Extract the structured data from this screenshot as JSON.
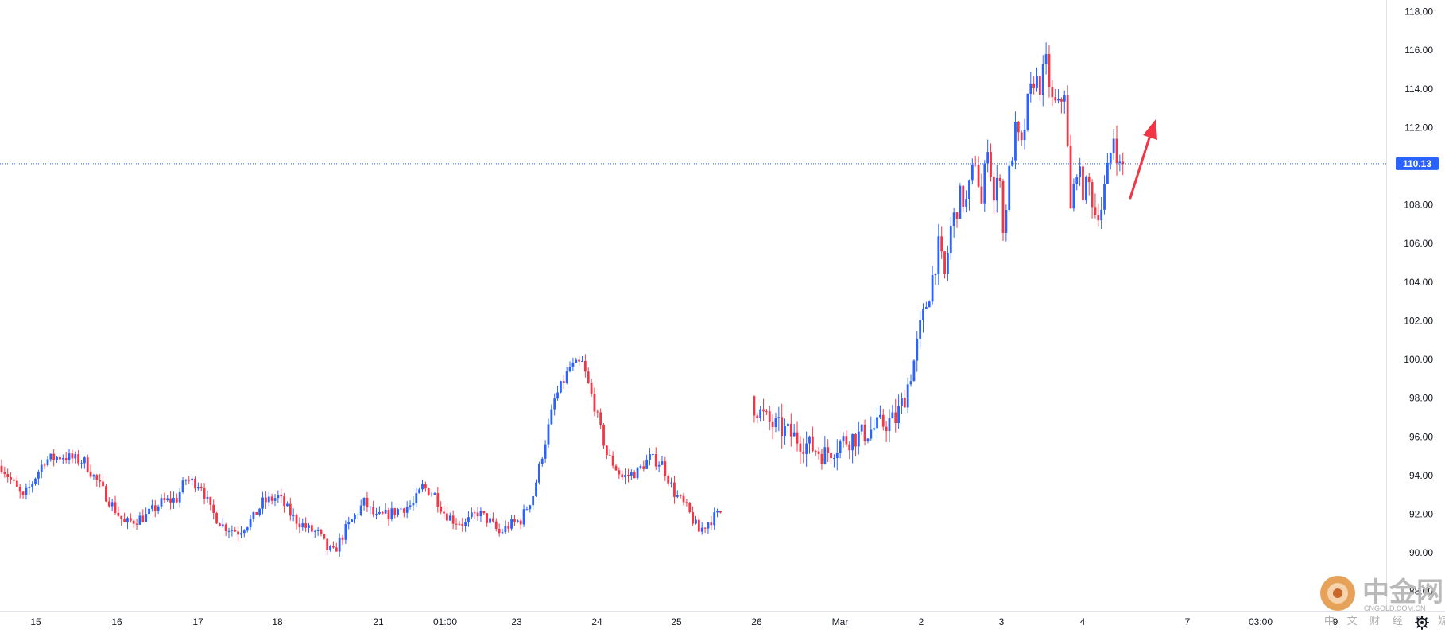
{
  "chart_data": {
    "type": "candlestick",
    "colors": {
      "up": "#2962ff",
      "down": "#f23645",
      "last_price_line": "#2962ff",
      "arrow": "#f23645",
      "axis_text": "#131722"
    },
    "ylim": [
      87,
      118.6
    ],
    "y_ticks": [
      "88.00",
      "90.00",
      "92.00",
      "94.00",
      "96.00",
      "98.00",
      "100.00",
      "102.00",
      "104.00",
      "106.00",
      "108.00",
      "110.00",
      "112.00",
      "114.00",
      "116.00",
      "118.00"
    ],
    "x_tick_labels": [
      "15",
      "16",
      "17",
      "18",
      "21",
      "01:00",
      "23",
      "24",
      "25",
      "26",
      "Mar",
      "2",
      "3",
      "4",
      "7",
      "03:00",
      "9"
    ],
    "last_price": 110.13,
    "last_price_label": "110.13",
    "annotation": "red arrow pointing up",
    "path": [
      [
        0,
        94.5
      ],
      [
        7,
        92.8
      ],
      [
        14,
        94.8
      ],
      [
        20,
        95.0
      ],
      [
        27,
        94.7
      ],
      [
        33,
        93.2
      ],
      [
        40,
        91.5
      ],
      [
        47,
        91.9
      ],
      [
        52,
        92.6
      ],
      [
        57,
        92.8
      ],
      [
        60,
        93.8
      ],
      [
        65,
        93.5
      ],
      [
        68,
        92.2
      ],
      [
        72,
        91.4
      ],
      [
        77,
        91.1
      ],
      [
        82,
        91.8
      ],
      [
        85,
        92.6
      ],
      [
        90,
        92.9
      ],
      [
        95,
        91.8
      ],
      [
        100,
        91.2
      ],
      [
        103,
        91.0
      ],
      [
        106,
        90.2
      ],
      [
        108,
        90.0
      ],
      [
        112,
        91.2
      ],
      [
        115,
        91.9
      ],
      [
        118,
        92.6
      ],
      [
        122,
        91.8
      ],
      [
        126,
        92.0
      ],
      [
        130,
        92.3
      ],
      [
        134,
        92.5
      ],
      [
        137,
        93.4
      ],
      [
        141,
        93.0
      ],
      [
        144,
        92.1
      ],
      [
        147,
        91.7
      ],
      [
        151,
        91.5
      ],
      [
        155,
        92.1
      ],
      [
        159,
        91.6
      ],
      [
        162,
        91.0
      ],
      [
        165,
        91.4
      ],
      [
        169,
        91.7
      ],
      [
        173,
        93.0
      ],
      [
        176,
        95.1
      ],
      [
        180,
        97.9
      ],
      [
        185,
        99.6
      ],
      [
        189,
        99.8
      ],
      [
        193,
        97.6
      ],
      [
        197,
        95.1
      ],
      [
        202,
        93.9
      ],
      [
        207,
        94.2
      ],
      [
        211,
        94.9
      ],
      [
        215,
        94.6
      ],
      [
        219,
        93.1
      ],
      [
        223,
        92.3
      ],
      [
        227,
        91.1
      ],
      [
        230,
        91.6
      ],
      [
        234,
        92.1
      ],
      [
        245,
        97.6
      ],
      [
        250,
        96.7
      ],
      [
        256,
        96.2
      ],
      [
        262,
        95.6
      ],
      [
        268,
        95.1
      ],
      [
        274,
        95.8
      ],
      [
        280,
        96.1
      ],
      [
        286,
        96.6
      ],
      [
        291,
        96.9
      ],
      [
        294,
        98.1
      ],
      [
        297,
        99.9
      ],
      [
        299,
        101.6
      ],
      [
        302,
        103.5
      ],
      [
        305,
        105.8
      ],
      [
        307,
        104.3
      ],
      [
        309,
        106.8
      ],
      [
        312,
        108.4
      ],
      [
        314,
        108.1
      ],
      [
        317,
        110.4
      ],
      [
        319,
        108.0
      ],
      [
        321,
        111.3
      ],
      [
        323,
        108.2
      ],
      [
        325,
        109.8
      ],
      [
        326,
        106.5
      ],
      [
        328,
        109.6
      ],
      [
        330,
        111.8
      ],
      [
        332,
        110.9
      ],
      [
        334,
        113.2
      ],
      [
        336,
        114.5
      ],
      [
        338,
        114.2
      ],
      [
        340,
        115.3
      ],
      [
        342,
        113.3
      ],
      [
        344,
        113.0
      ],
      [
        346,
        114.0
      ],
      [
        348,
        107.6
      ],
      [
        350,
        110.0
      ],
      [
        352,
        108.8
      ],
      [
        354,
        109.0
      ],
      [
        356,
        107.6
      ],
      [
        358,
        107.9
      ],
      [
        360,
        109.7
      ],
      [
        362,
        111.6
      ],
      [
        364,
        109.9
      ],
      [
        365,
        110.13
      ]
    ],
    "slots_total": 366,
    "gap_after_slot": 234,
    "gap_before_slot": 245
  },
  "icons": {
    "settings": "gear-icon",
    "watermark_logo": "cngold-logo-icon"
  },
  "watermark": {
    "brand": "中金网",
    "domain": "CNGOLD.COM.CN",
    "tagline": "中 文 财 经 新 媒 体"
  }
}
